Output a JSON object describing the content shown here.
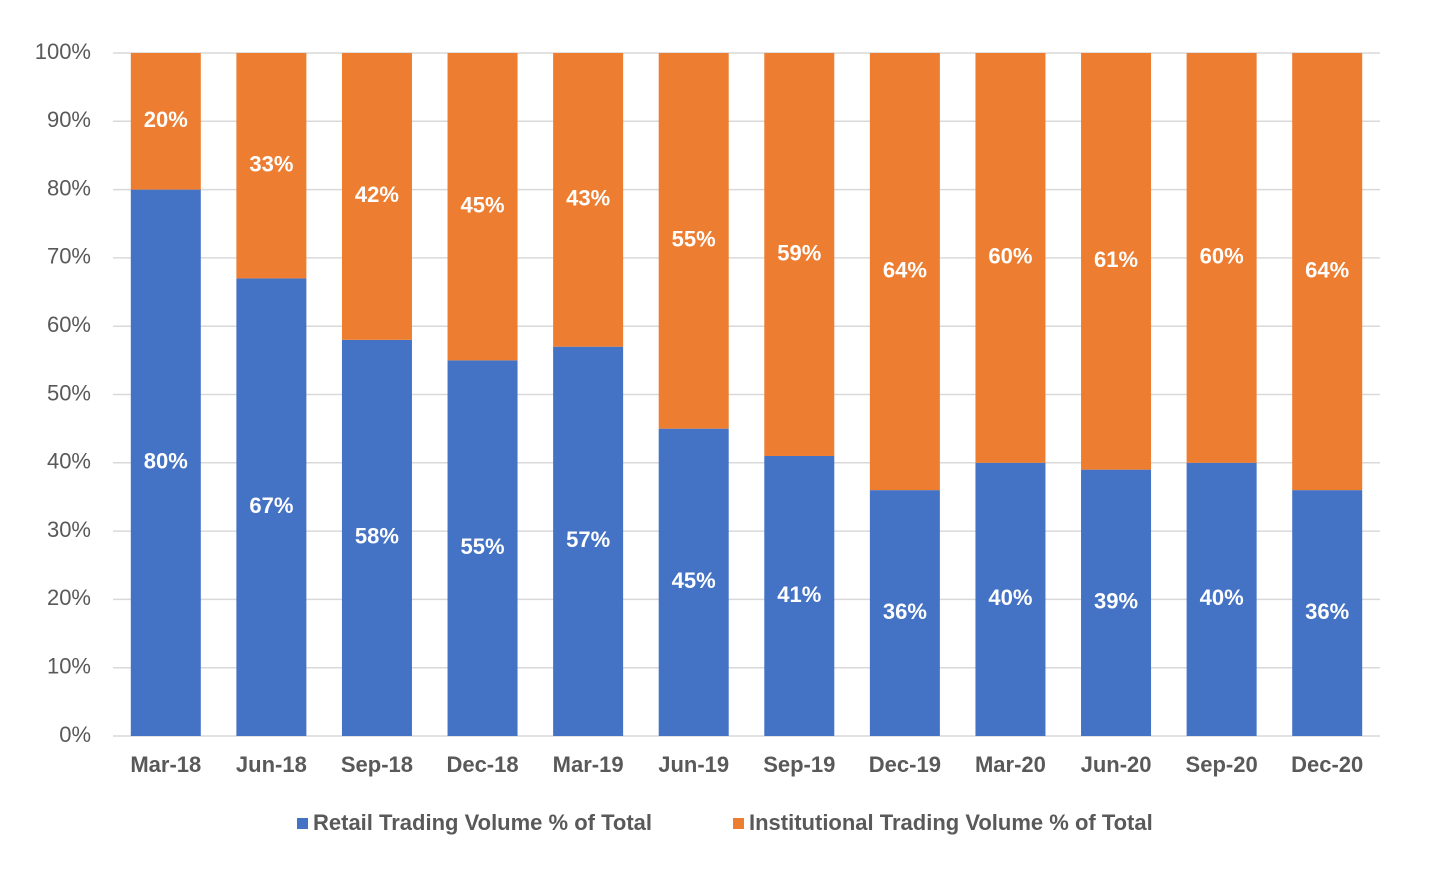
{
  "chart_data": {
    "type": "bar",
    "stacked": true,
    "categories": [
      "Mar-18",
      "Jun-18",
      "Sep-18",
      "Dec-18",
      "Mar-19",
      "Jun-19",
      "Sep-19",
      "Dec-19",
      "Mar-20",
      "Jun-20",
      "Sep-20",
      "Dec-20"
    ],
    "series": [
      {
        "name": "Retail Trading Volume % of Total",
        "color": "#4472c4",
        "values": [
          80,
          67,
          58,
          55,
          57,
          45,
          41,
          36,
          40,
          39,
          40,
          36
        ],
        "value_labels": [
          "80%",
          "67%",
          "58%",
          "55%",
          "57%",
          "45%",
          "41%",
          "36%",
          "40%",
          "39%",
          "40%",
          "36%"
        ]
      },
      {
        "name": "Institutional Trading Volume % of Total",
        "color": "#ed7d31",
        "values": [
          20,
          33,
          42,
          45,
          43,
          55,
          59,
          64,
          60,
          61,
          60,
          64
        ],
        "value_labels": [
          "20%",
          "33%",
          "42%",
          "45%",
          "43%",
          "55%",
          "59%",
          "64%",
          "60%",
          "61%",
          "60%",
          "64%"
        ]
      }
    ],
    "ylim": [
      0,
      100
    ],
    "yticks": [
      {
        "value": 0,
        "label": "0%"
      },
      {
        "value": 10,
        "label": "10%"
      },
      {
        "value": 20,
        "label": "20%"
      },
      {
        "value": 30,
        "label": "30%"
      },
      {
        "value": 40,
        "label": "40%"
      },
      {
        "value": 50,
        "label": "50%"
      },
      {
        "value": 60,
        "label": "60%"
      },
      {
        "value": 70,
        "label": "70%"
      },
      {
        "value": 80,
        "label": "80%"
      },
      {
        "value": 90,
        "label": "90%"
      },
      {
        "value": 100,
        "label": "100%"
      }
    ],
    "grid": true,
    "legend": "bottom"
  }
}
